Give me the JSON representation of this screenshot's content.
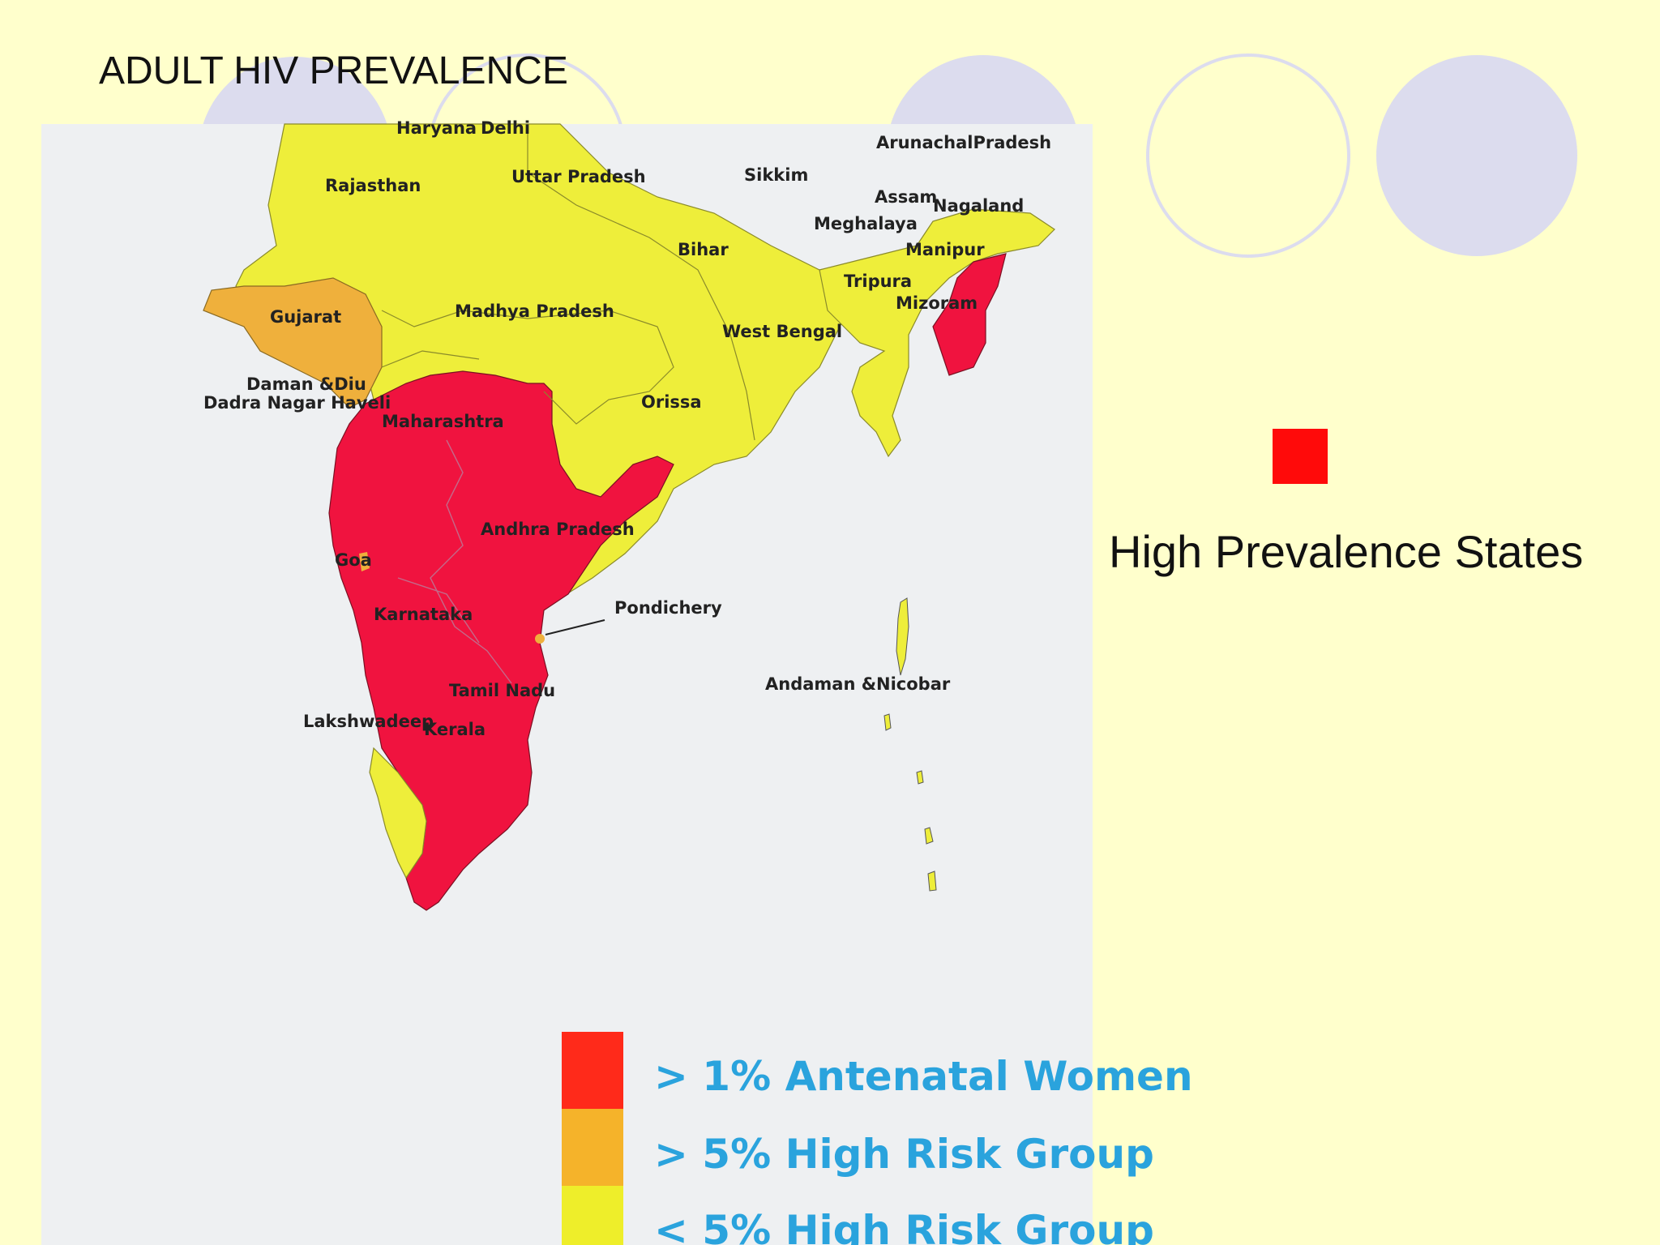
{
  "slide": {
    "title": "ADULT HIV PREVALENCE",
    "background_color": "#ffffcc",
    "circle_color": "#dcdcee"
  },
  "map": {
    "region_labels": [
      {
        "id": "haryana",
        "text": "Haryana"
      },
      {
        "id": "delhi",
        "text": "Delhi"
      },
      {
        "id": "rajasthan",
        "text": "Rajasthan"
      },
      {
        "id": "uttar-pradesh",
        "text": "Uttar Pradesh"
      },
      {
        "id": "bihar",
        "text": "Bihar"
      },
      {
        "id": "sikkim",
        "text": "Sikkim"
      },
      {
        "id": "arunachal-pradesh",
        "text": "ArunachalPradesh"
      },
      {
        "id": "assam",
        "text": "Assam"
      },
      {
        "id": "nagaland",
        "text": "Nagaland"
      },
      {
        "id": "meghalaya",
        "text": "Meghalaya"
      },
      {
        "id": "manipur",
        "text": "Manipur"
      },
      {
        "id": "tripura",
        "text": "Tripura"
      },
      {
        "id": "mizoram",
        "text": "Mizoram"
      },
      {
        "id": "gujarat",
        "text": "Gujarat"
      },
      {
        "id": "madhya-pradesh",
        "text": "Madhya Pradesh"
      },
      {
        "id": "west-bengal",
        "text": "West Bengal"
      },
      {
        "id": "daman-diu",
        "text": "Daman &Diu"
      },
      {
        "id": "dadra-nagar-haveli",
        "text": "Dadra Nagar Haveli"
      },
      {
        "id": "orissa",
        "text": "Orissa"
      },
      {
        "id": "maharashtra",
        "text": "Maharashtra"
      },
      {
        "id": "andhra-pradesh",
        "text": "Andhra Pradesh"
      },
      {
        "id": "goa",
        "text": "Goa"
      },
      {
        "id": "karnataka",
        "text": "Karnataka"
      },
      {
        "id": "pondichery",
        "text": "Pondichery"
      },
      {
        "id": "andaman-nicobar",
        "text": "Andaman &Nicobar"
      },
      {
        "id": "tamil-nadu",
        "text": "Tamil Nadu"
      },
      {
        "id": "lakshwadeep",
        "text": "Lakshwadeep"
      },
      {
        "id": "kerala",
        "text": "Kerala"
      }
    ],
    "legend": [
      {
        "label": "> 1% Antenatal Women",
        "color": "#ff2a1a"
      },
      {
        "label": "> 5% High Risk Group",
        "color": "#f5b32a"
      },
      {
        "label": "< 5% High Risk Group",
        "color": "#eeee2a"
      }
    ],
    "legend_text_color": "#2aa3dd",
    "fill_colors": {
      "high": "#f0133f",
      "medium": "#efb03c",
      "low": "#eeee3a"
    }
  },
  "side_legend": {
    "label": "High Prevalence States",
    "color": "#ff0a0a"
  }
}
